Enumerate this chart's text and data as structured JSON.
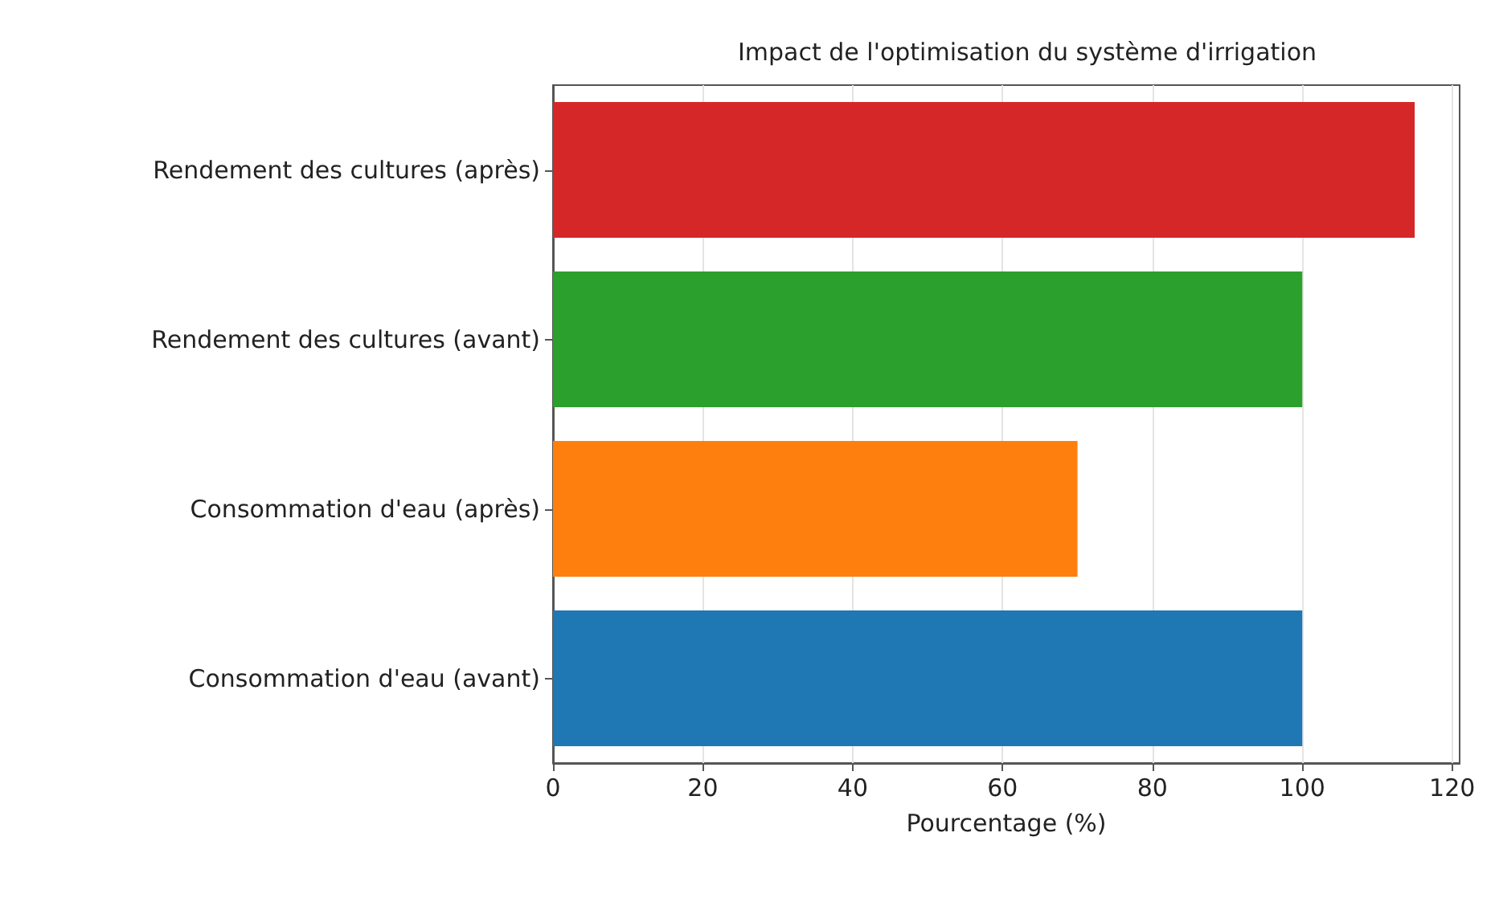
{
  "chart_data": {
    "type": "bar",
    "orientation": "horizontal",
    "title": "Impact de l'optimisation du système d'irrigation",
    "xlabel": "Pourcentage (%)",
    "categories": [
      "Rendement des cultures (après)",
      "Rendement des cultures (avant)",
      "Consommation d'eau (après)",
      "Consommation d'eau (avant)"
    ],
    "values": [
      115,
      100,
      70,
      100
    ],
    "colors": [
      "#d62728",
      "#2ca02c",
      "#ff7f0e",
      "#1f77b4"
    ],
    "xlim": [
      0,
      121
    ],
    "xticks": [
      0,
      20,
      40,
      60,
      80,
      100,
      120
    ],
    "grid": "x"
  }
}
